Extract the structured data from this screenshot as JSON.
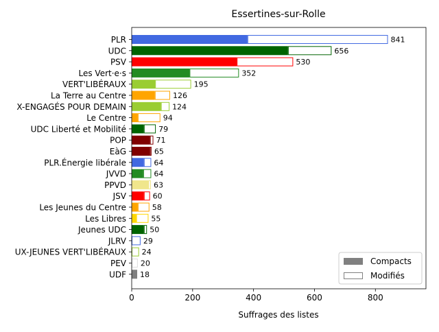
{
  "chart_data": {
    "type": "bar",
    "orientation": "horizontal",
    "stacked": true,
    "title": "Essertines-sur-Rolle",
    "xlabel": "Suffrages des listes",
    "ylabel": "",
    "xlim": [
      0,
      966
    ],
    "xticks": [
      0,
      200,
      400,
      600,
      800
    ],
    "grid": false,
    "legend_position": "lower right",
    "legend": [
      {
        "label": "Compacts",
        "style": "filled",
        "color": "#808080"
      },
      {
        "label": "Modifiés",
        "style": "outline",
        "color": "#808080"
      }
    ],
    "categories": [
      "PLR",
      "UDC",
      "PSV",
      "Les Vert·e·s",
      "VERT'LIBÉRAUX",
      "La Terre au Centre",
      "X-ENGAGÉS POUR DEMAIN",
      "Le Centre",
      "UDC Liberté et Mobilité",
      "POP",
      "EàG",
      "PLR.Énergie libérale",
      "JVVD",
      "PPVD",
      "JSV",
      "Les Jeunes du Centre",
      "Les Libres",
      "Jeunes UDC",
      "JLRV",
      "UX-JEUNES VERT'LIBÉRAUX",
      "PEV",
      "UDF"
    ],
    "series": [
      {
        "name": "Compacts",
        "values": [
          380,
          513,
          345,
          190,
          77,
          76,
          96,
          20,
          40,
          60,
          60,
          40,
          38,
          55,
          40,
          20,
          15,
          40,
          0,
          0,
          0,
          18
        ]
      },
      {
        "name": "Modifiés",
        "values": [
          461,
          143,
          185,
          162,
          118,
          50,
          28,
          74,
          39,
          11,
          5,
          24,
          26,
          8,
          20,
          38,
          40,
          10,
          29,
          24,
          20,
          0
        ]
      }
    ],
    "totals": [
      841,
      656,
      530,
      352,
      195,
      126,
      124,
      94,
      79,
      71,
      65,
      64,
      64,
      63,
      60,
      58,
      55,
      50,
      29,
      24,
      20,
      18
    ],
    "colors": [
      "#4169e1",
      "#006400",
      "#ff0000",
      "#228b22",
      "#9acd32",
      "#ffa500",
      "#9acd32",
      "#ffa500",
      "#006400",
      "#800000",
      "#800000",
      "#4169e1",
      "#228b22",
      "#f0e68c",
      "#ff0000",
      "#ffa500",
      "#ffd700",
      "#006400",
      "#4169e1",
      "#9acd32",
      "#dddddd",
      "#808080"
    ]
  }
}
